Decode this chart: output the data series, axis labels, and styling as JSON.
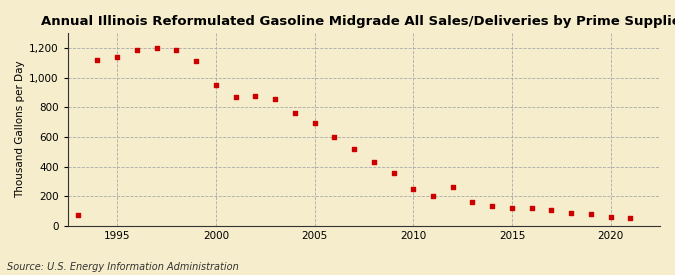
{
  "title": "Annual Illinois Reformulated Gasoline Midgrade All Sales/Deliveries by Prime Supplier",
  "ylabel": "Thousand Gallons per Day",
  "source": "Source: U.S. Energy Information Administration",
  "years": [
    1993,
    1994,
    1995,
    1996,
    1997,
    1998,
    1999,
    2000,
    2001,
    2002,
    2003,
    2004,
    2005,
    2006,
    2007,
    2008,
    2009,
    2010,
    2011,
    2012,
    2013,
    2014,
    2015,
    2016,
    2017,
    2018,
    2019,
    2020,
    2021
  ],
  "values": [
    75,
    1120,
    1140,
    1190,
    1200,
    1185,
    1110,
    950,
    870,
    880,
    855,
    760,
    695,
    600,
    520,
    430,
    360,
    252,
    200,
    265,
    160,
    135,
    120,
    120,
    105,
    90,
    80,
    60,
    55
  ],
  "marker_color": "#cc0000",
  "bg_color": "#f5edcb",
  "plot_bg_color": "#f5edcb",
  "ylim": [
    0,
    1300
  ],
  "yticks": [
    0,
    200,
    400,
    600,
    800,
    1000,
    1200
  ],
  "xlim": [
    1992.5,
    2022.5
  ],
  "xticks": [
    1995,
    2000,
    2005,
    2010,
    2015,
    2020
  ],
  "title_fontsize": 9.5,
  "label_fontsize": 7.5,
  "source_fontsize": 7,
  "tick_fontsize": 7.5
}
